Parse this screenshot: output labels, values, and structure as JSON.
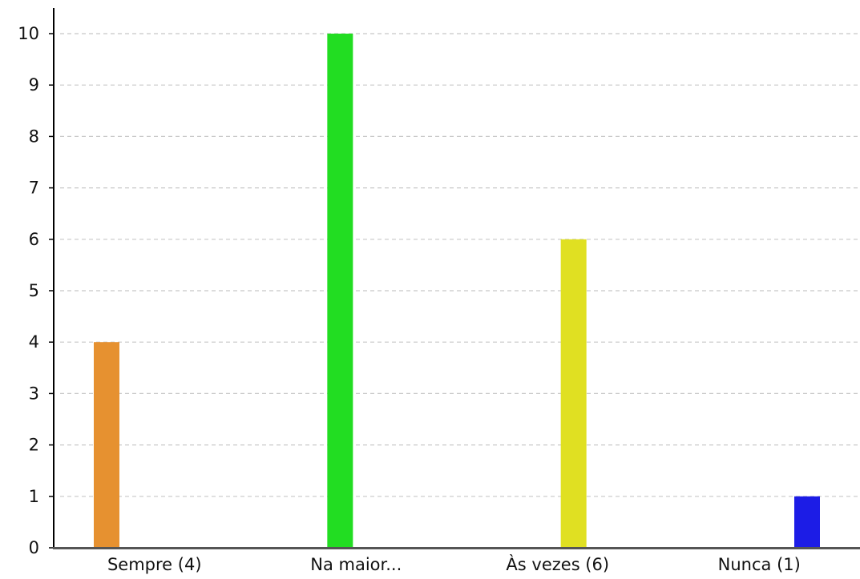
{
  "chart_data": {
    "type": "bar",
    "title": "",
    "xlabel": "",
    "ylabel": "",
    "categories": [
      "Sempre (4)",
      "Na maior...",
      "Às vezes (6)",
      "Nunca (1)"
    ],
    "values": [
      4,
      10,
      6,
      1
    ],
    "colors": [
      "#e69130",
      "#22dd22",
      "#e0e022",
      "#1c1ce6"
    ],
    "ylim": [
      0,
      10
    ],
    "yticks": [
      0,
      1,
      2,
      3,
      4,
      5,
      6,
      7,
      8,
      9,
      10
    ],
    "grid": true,
    "legend": "none"
  }
}
